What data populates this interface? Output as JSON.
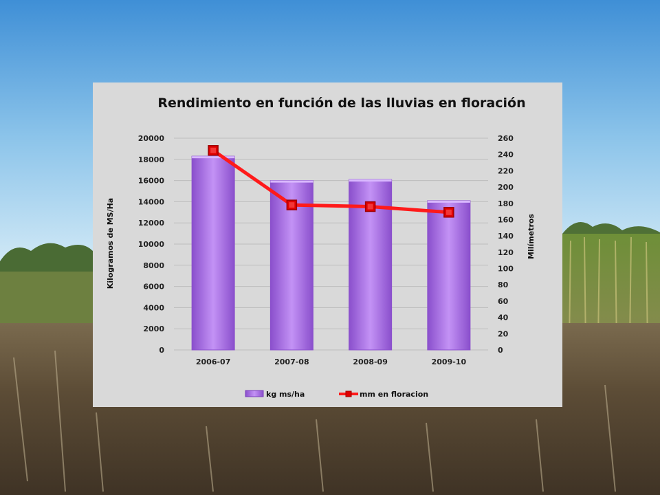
{
  "colors": {
    "bar": "#b07ee8",
    "bar_dark": "#8a4fcc",
    "line": "#ff1a1a",
    "marker": "#e00000",
    "panel": "#d9d9d9",
    "grid": "#bdbdbd"
  },
  "chart_data": {
    "type": "bar",
    "title": "Rendimiento en función de las lluvias en floración",
    "categories": [
      "2006-07",
      "2007-08",
      "2008-09",
      "2009-10"
    ],
    "series": [
      {
        "name": "kg ms/ha",
        "type": "bar",
        "axis": "left",
        "values": [
          18300,
          16000,
          16100,
          14100
        ]
      },
      {
        "name": "mm en floracion",
        "type": "line",
        "axis": "right",
        "values": [
          245,
          178,
          176,
          169
        ]
      }
    ],
    "ylabel": "Kilogramos de MS/Ha",
    "y2label": "Milímetros",
    "ylim": [
      0,
      20000
    ],
    "y2lim": [
      0,
      260
    ],
    "yticks": [
      "0",
      "2000",
      "4000",
      "6000",
      "8000",
      "10000",
      "12000",
      "14000",
      "16000",
      "18000",
      "20000"
    ],
    "y2ticks": [
      "0",
      "20",
      "40",
      "60",
      "80",
      "100",
      "120",
      "140",
      "160",
      "180",
      "200",
      "220",
      "240",
      "260"
    ],
    "grid": true,
    "legend": "bottom"
  }
}
